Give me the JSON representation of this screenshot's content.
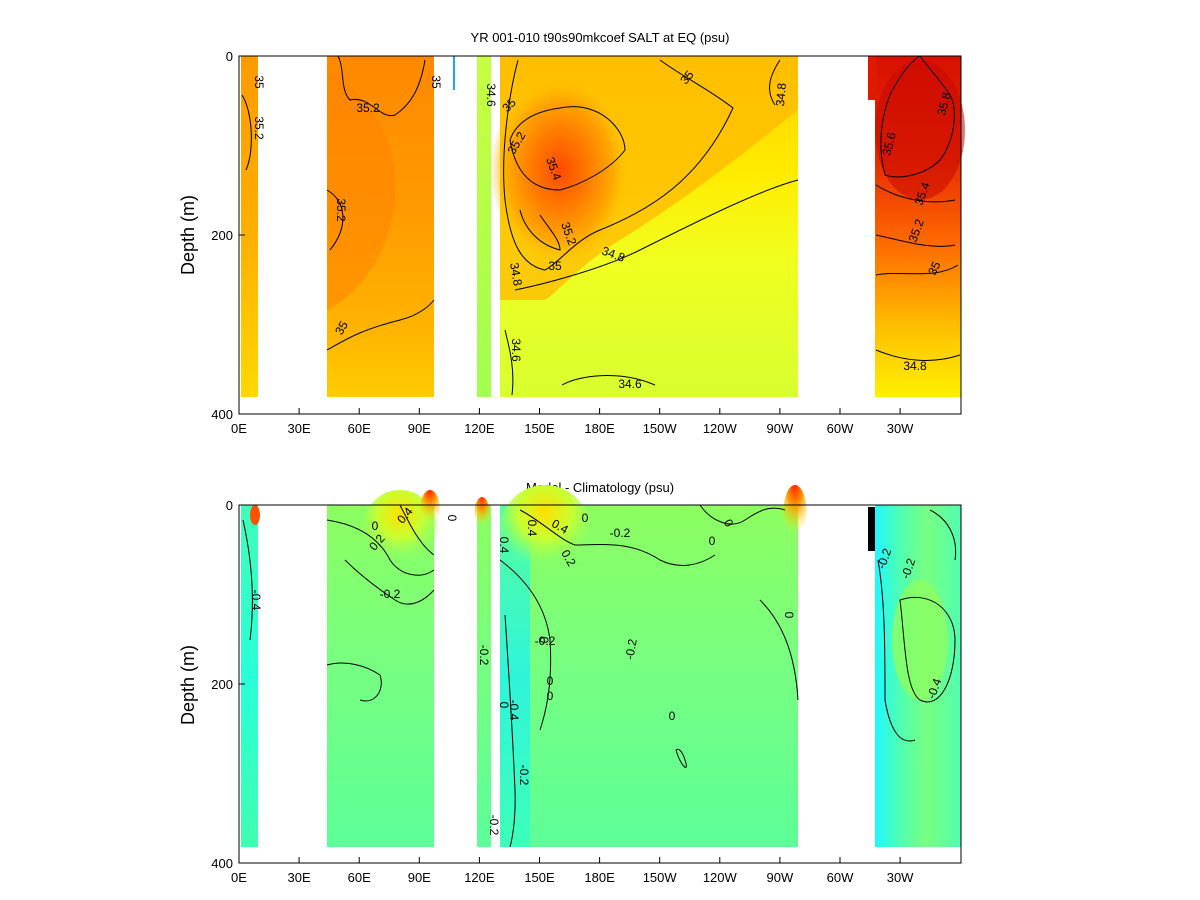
{
  "chart_data": [
    {
      "type": "heatmap",
      "title": "YR 001-010 t90s90mkcoef SALT at EQ (psu)",
      "ylabel": "Depth (m)",
      "xticks": [
        "0E",
        "30E",
        "60E",
        "90E",
        "120E",
        "150E",
        "180E",
        "150W",
        "120W",
        "90W",
        "60W",
        "30W"
      ],
      "xrange_deg_east": [
        0,
        360
      ],
      "yticks": [
        "0",
        "200",
        "400"
      ],
      "ylim": [
        400,
        0
      ],
      "value_range": [
        34.4,
        35.8
      ],
      "colormap": "yellow-orange-red",
      "data_columns": [
        {
          "lon": [
            3,
            8
          ],
          "depth": [
            0,
            380
          ],
          "mean": 35.2
        },
        {
          "lon": [
            44,
            97
          ],
          "depth": [
            0,
            380
          ],
          "mean": 35.15
        },
        {
          "lon": [
            120,
            128
          ],
          "depth": [
            0,
            380
          ],
          "mean": 34.7
        },
        {
          "lon": [
            130,
            270
          ],
          "depth": [
            0,
            380
          ],
          "mean": 34.9
        },
        {
          "lon": [
            320,
            360
          ],
          "depth": [
            0,
            380
          ],
          "mean": 35.3
        }
      ],
      "contour_labels": [
        "35",
        "35.2",
        "35",
        "35.2",
        "35.2",
        "35",
        "34.6",
        "35",
        "35.2",
        "35.4",
        "35.2",
        "35",
        "34.8",
        "34.8",
        "34.6",
        "34.6",
        "35",
        "34.8",
        "35.6",
        "35.8",
        "35.4",
        "35.2",
        "35",
        "34.8"
      ]
    },
    {
      "type": "heatmap",
      "title": "Model - Climatology (psu)",
      "ylabel": "Depth (m)",
      "xticks": [
        "0E",
        "30E",
        "60E",
        "90E",
        "120E",
        "150E",
        "180E",
        "150W",
        "120W",
        "90W",
        "60W",
        "30W"
      ],
      "xrange_deg_east": [
        0,
        360
      ],
      "yticks": [
        "0",
        "200",
        "400"
      ],
      "ylim": [
        400,
        0
      ],
      "value_range": [
        -0.6,
        0.6
      ],
      "colormap": "jet",
      "data_columns": [
        {
          "lon": [
            3,
            8
          ],
          "depth": [
            0,
            380
          ],
          "mean": -0.4
        },
        {
          "lon": [
            44,
            97
          ],
          "depth": [
            0,
            380
          ],
          "mean": -0.1
        },
        {
          "lon": [
            120,
            128
          ],
          "depth": [
            0,
            380
          ],
          "mean": 0.1
        },
        {
          "lon": [
            130,
            270
          ],
          "depth": [
            0,
            380
          ],
          "mean": -0.2
        },
        {
          "lon": [
            320,
            360
          ],
          "depth": [
            0,
            380
          ],
          "mean": -0.2
        }
      ],
      "contour_labels": [
        "-0.4",
        "0.2",
        "0.4",
        "0",
        "-0.2",
        "0",
        "0.4",
        "0.4",
        "0",
        "0.4",
        "0.2",
        "-0.2",
        "0",
        "0",
        "-0.2",
        "0",
        "0",
        "0",
        "-0.2",
        "0",
        "-0.4",
        "-0.2",
        "0",
        "-0.2",
        "-0.2",
        "-0.4",
        "-0.2",
        "-0.2",
        "0"
      ]
    }
  ]
}
